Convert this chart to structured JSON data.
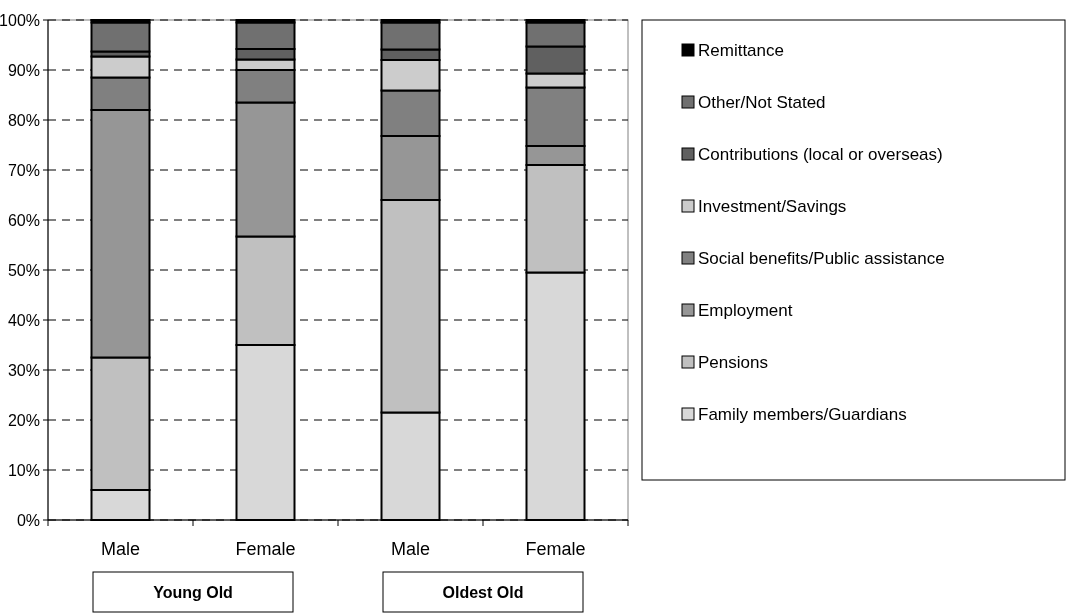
{
  "chart_data": {
    "type": "bar",
    "stacked": true,
    "categories": [
      "Male",
      "Female",
      "Male",
      "Female"
    ],
    "series": [
      {
        "name": "Family members/Guardians",
        "color": "#d8d8d8",
        "values": [
          6,
          35,
          21.5,
          49.5
        ]
      },
      {
        "name": "Pensions",
        "color": "#c0c0c0",
        "values": [
          26.5,
          21.7,
          42.5,
          21.5
        ]
      },
      {
        "name": "Employment",
        "color": "#969696",
        "values": [
          49.5,
          26.8,
          12.8,
          3.8
        ]
      },
      {
        "name": "Social benefits/Public assistance",
        "color": "#808080",
        "values": [
          6.5,
          6.5,
          9.1,
          11.7
        ]
      },
      {
        "name": "Investment/Savings",
        "color": "#cccccc",
        "values": [
          4.2,
          2.1,
          6.1,
          2.8
        ]
      },
      {
        "name": "Contributions (local or overseas)",
        "color": "#606060",
        "values": [
          1,
          2.1,
          2.1,
          5.4
        ]
      },
      {
        "name": "Other/Not Stated",
        "color": "#707070",
        "values": [
          5.8,
          5.3,
          5.4,
          4.8
        ]
      },
      {
        "name": "Remittance",
        "color": "#000000",
        "values": [
          0.5,
          0.5,
          0.5,
          0.5
        ]
      }
    ],
    "ylim": [
      0,
      100
    ],
    "yticks": [
      {
        "value": 0,
        "label": "0%"
      },
      {
        "value": 10,
        "label": "10%"
      },
      {
        "value": 20,
        "label": "20%"
      },
      {
        "value": 30,
        "label": "30%"
      },
      {
        "value": 40,
        "label": "40%"
      },
      {
        "value": 50,
        "label": "50%"
      },
      {
        "value": 60,
        "label": "60%"
      },
      {
        "value": 70,
        "label": "70%"
      },
      {
        "value": 80,
        "label": "80%"
      },
      {
        "value": 90,
        "label": "90%"
      },
      {
        "value": 100,
        "label": "100%"
      }
    ],
    "grid": "y",
    "legend": "right",
    "annotations": [
      "Young Old",
      "Oldest Old"
    ]
  }
}
